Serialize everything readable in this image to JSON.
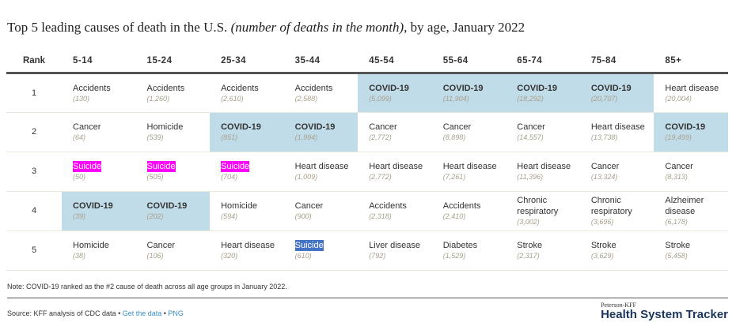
{
  "chart_data": {
    "type": "table",
    "title_plain": "Top 5 leading causes of death in the U.S. ",
    "title_italic": "(number of deaths in the month)",
    "title_end": ", by age, January 2022",
    "rank_header": "Rank",
    "columns": [
      "5-14",
      "15-24",
      "25-34",
      "35-44",
      "45-54",
      "55-64",
      "65-74",
      "75-84",
      "85+"
    ],
    "rows": [
      {
        "rank": "1",
        "cells": [
          {
            "cause": "Accidents",
            "value": "(130)"
          },
          {
            "cause": "Accidents",
            "value": "(1,260)"
          },
          {
            "cause": "Accidents",
            "value": "(2,610)"
          },
          {
            "cause": "Accidents",
            "value": "(2,588)"
          },
          {
            "cause": "COVID-19",
            "value": "(5,099)",
            "style": "covid"
          },
          {
            "cause": "COVID-19",
            "value": "(11,904)",
            "style": "covid"
          },
          {
            "cause": "COVID-19",
            "value": "(18,292)",
            "style": "covid"
          },
          {
            "cause": "COVID-19",
            "value": "(20,707)",
            "style": "covid"
          },
          {
            "cause": "Heart disease",
            "value": "(20,004)"
          }
        ]
      },
      {
        "rank": "2",
        "cells": [
          {
            "cause": "Cancer",
            "value": "(64)"
          },
          {
            "cause": "Homicide",
            "value": "(539)"
          },
          {
            "cause": "COVID-19",
            "value": "(851)",
            "style": "covid"
          },
          {
            "cause": "COVID-19",
            "value": "(1,994)",
            "style": "covid"
          },
          {
            "cause": "Cancer",
            "value": "(2,772)"
          },
          {
            "cause": "Cancer",
            "value": "(8,898)"
          },
          {
            "cause": "Cancer",
            "value": "(14,557)"
          },
          {
            "cause": "Heart disease",
            "value": "(13,738)"
          },
          {
            "cause": "COVID-19",
            "value": "(19,499)",
            "style": "covid"
          }
        ]
      },
      {
        "rank": "3",
        "cells": [
          {
            "cause": "Suicide",
            "value": "(50)",
            "style": "magenta"
          },
          {
            "cause": "Suicide",
            "value": "(505)",
            "style": "magenta"
          },
          {
            "cause": "Suicide",
            "value": "(704)",
            "style": "magenta"
          },
          {
            "cause": "Heart disease",
            "value": "(1,009)"
          },
          {
            "cause": "Heart disease",
            "value": "(2,772)"
          },
          {
            "cause": "Heart disease",
            "value": "(7,261)"
          },
          {
            "cause": "Heart disease",
            "value": "(11,396)"
          },
          {
            "cause": "Cancer",
            "value": "(13,324)"
          },
          {
            "cause": "Cancer",
            "value": "(8,313)"
          }
        ]
      },
      {
        "rank": "4",
        "cells": [
          {
            "cause": "COVID-19",
            "value": "(39)",
            "style": "covid"
          },
          {
            "cause": "COVID-19",
            "value": "(202)",
            "style": "covid"
          },
          {
            "cause": "Homicide",
            "value": "(594)"
          },
          {
            "cause": "Cancer",
            "value": "(900)"
          },
          {
            "cause": "Accidents",
            "value": "(2,318)"
          },
          {
            "cause": "Accidents",
            "value": "(2,410)"
          },
          {
            "cause": "Chronic respiratory",
            "value": "(3,002)"
          },
          {
            "cause": "Chronic respiratory",
            "value": "(3,696)"
          },
          {
            "cause": "Alzheimer disease",
            "value": "(6,178)"
          }
        ]
      },
      {
        "rank": "5",
        "cells": [
          {
            "cause": "Homicide",
            "value": "(38)"
          },
          {
            "cause": "Cancer",
            "value": "(106)"
          },
          {
            "cause": "Heart disease",
            "value": "(320)"
          },
          {
            "cause": "Suicide",
            "value": "(610)",
            "style": "selected"
          },
          {
            "cause": "Liver disease",
            "value": "(792)"
          },
          {
            "cause": "Diabetes",
            "value": "(1,529)"
          },
          {
            "cause": "Stroke",
            "value": "(2,317)"
          },
          {
            "cause": "Stroke",
            "value": "(3,629)"
          },
          {
            "cause": "Stroke",
            "value": "(5,458)"
          }
        ]
      }
    ],
    "colors": {
      "covid_highlight": "#c1dce9",
      "magenta_highlight": "#ff00ff",
      "selection_highlight": "#4472c4"
    }
  },
  "note": "Note: COVID-19 ranked as the #2 cause of death across all age groups in January 2022.",
  "source": {
    "text": "Source: KFF analysis of CDC data",
    "sep": " • ",
    "get_data": "Get the data",
    "png": "PNG"
  },
  "logo": {
    "small": "Peterson-KFF",
    "big": "Health System Tracker"
  }
}
